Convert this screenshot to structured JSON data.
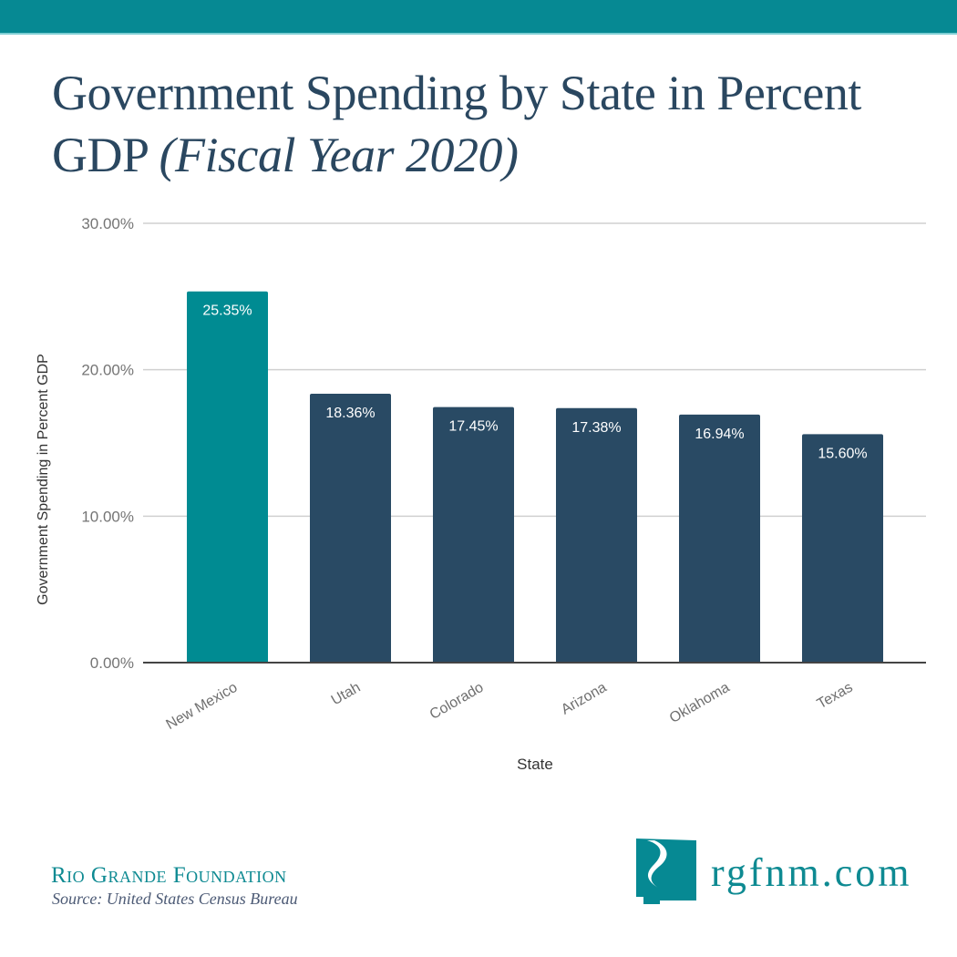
{
  "header": {
    "title_main": "Government Spending by State in Percent GDP",
    "title_sub": "(Fiscal Year 2020)"
  },
  "colors": {
    "brand_teal": "#068993",
    "highlight_bar": "#008b92",
    "default_bar": "#294a64",
    "title_text": "#2a4760"
  },
  "chart_data": {
    "type": "bar",
    "title": "Government Spending by State in Percent GDP (Fiscal Year 2020)",
    "xlabel": "State",
    "ylabel": "Government Spending in Percent GDP",
    "categories": [
      "New Mexico",
      "Utah",
      "Colorado",
      "Arizona",
      "Oklahoma",
      "Texas"
    ],
    "values": [
      25.35,
      18.36,
      17.45,
      17.38,
      16.94,
      15.6
    ],
    "data_labels": [
      "25.35%",
      "18.36%",
      "17.45%",
      "17.38%",
      "16.94%",
      "15.60%"
    ],
    "highlight": "New Mexico",
    "ylim": [
      0,
      30
    ],
    "yticks": [
      0,
      10,
      20,
      30
    ],
    "ytick_labels": [
      "0.00%",
      "10.00%",
      "20.00%",
      "30.00%"
    ],
    "grid": true,
    "legend": "none"
  },
  "footer": {
    "organization": "Rio Grande Foundation",
    "source": "Source: United States Census Bureau",
    "website": "rgfnm.com",
    "logo_icon": "new-mexico-river-logo-icon"
  }
}
